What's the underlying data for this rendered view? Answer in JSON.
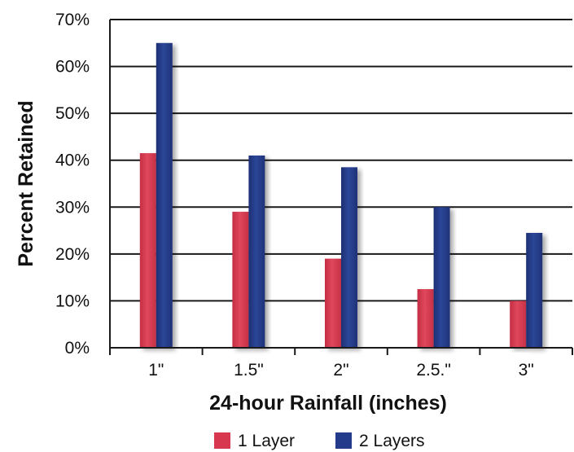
{
  "chart_data": {
    "type": "bar",
    "title": "",
    "xlabel": "24-hour Rainfall (inches)",
    "ylabel": "Percent Retained",
    "categories": [
      "1\"",
      "1.5\"",
      "2\"",
      "2.5.\"",
      "3\""
    ],
    "series": [
      {
        "name": "1 Layer",
        "color": "#d8384f",
        "values": [
          41.5,
          29,
          19,
          12.5,
          10
        ]
      },
      {
        "name": "2 Layers",
        "color": "#243a8a",
        "values": [
          65,
          41,
          38.5,
          30,
          24.5
        ]
      }
    ],
    "yticks": [
      "0%",
      "10%",
      "20%",
      "30%",
      "40%",
      "50%",
      "60%",
      "70%"
    ],
    "ylim": [
      0,
      70
    ],
    "grid": true,
    "legend_position": "bottom"
  }
}
